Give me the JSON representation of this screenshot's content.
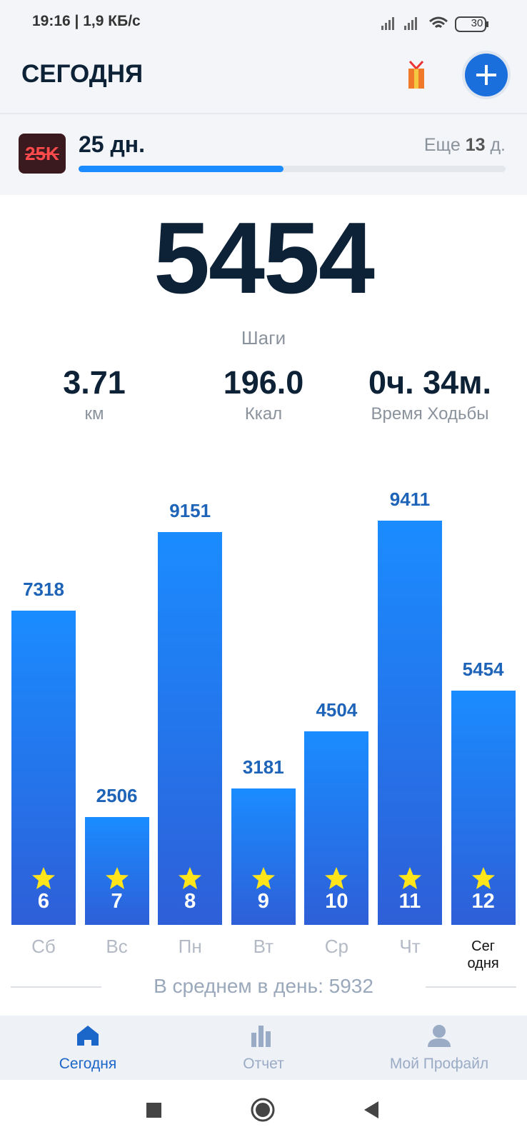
{
  "status_bar": {
    "status_text": "19:16 | 1,9 КБ/с",
    "battery": "30"
  },
  "header": {
    "title": "СЕГОДНЯ"
  },
  "streak": {
    "badge": "25K",
    "days": "25 дн.",
    "remaining_prefix": "Еще",
    "remaining_value": "13",
    "remaining_suffix": "д.",
    "progress": 48
  },
  "steps": {
    "value": "5454",
    "label": "Шаги"
  },
  "stats": [
    {
      "value": "3.71",
      "label": "км"
    },
    {
      "value": "196.0",
      "label": "Ккал"
    },
    {
      "value": "0ч. 34м.",
      "label": "Время Ходьбы"
    }
  ],
  "chart_data": {
    "type": "bar",
    "categories": [
      "Сб",
      "Вс",
      "Пн",
      "Вт",
      "Ср",
      "Чт",
      "Сег\nодня"
    ],
    "values": [
      7318,
      2506,
      9151,
      3181,
      4504,
      9411,
      5454
    ],
    "day_numbers": [
      6,
      7,
      8,
      9,
      10,
      11,
      12
    ],
    "ylim": [
      0,
      10000
    ],
    "color": "#1a8cff",
    "color_bottom": "#2e5fd8",
    "average_label": "В среднем в день:",
    "average": 5932
  },
  "nav": {
    "items": [
      "Сегодня",
      "Отчет",
      "Мой Профайл"
    ],
    "active": 0
  }
}
